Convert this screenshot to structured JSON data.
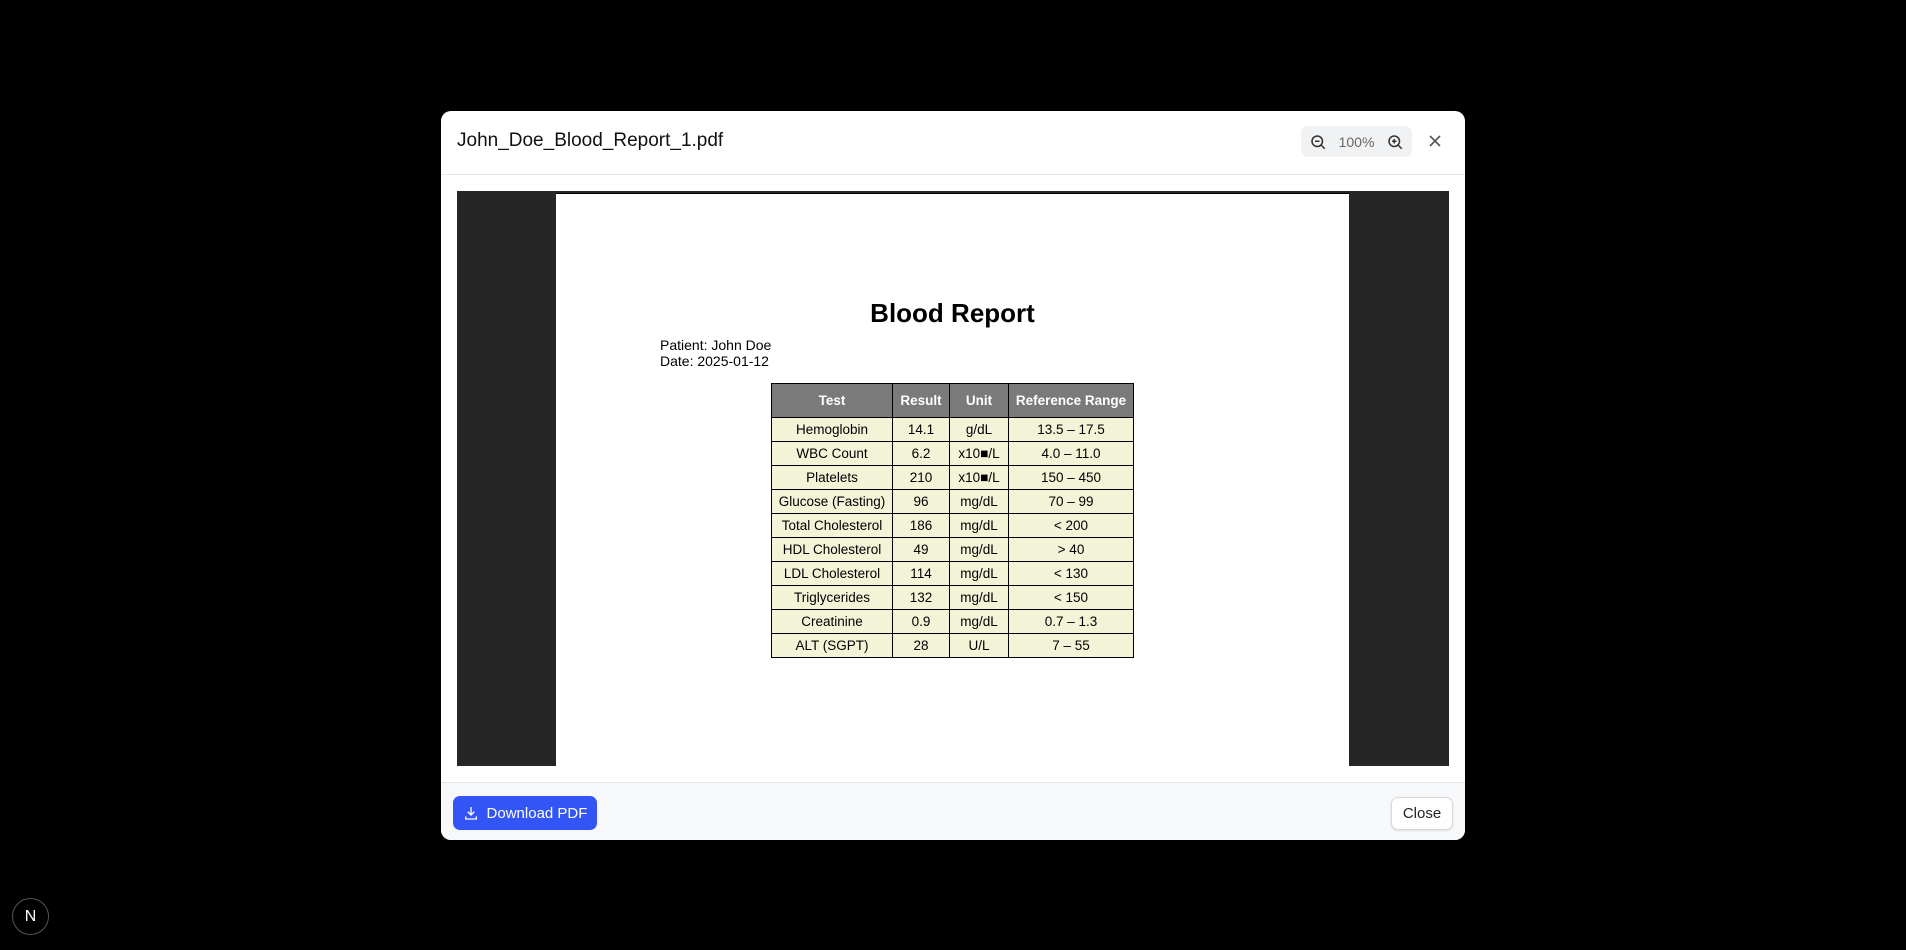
{
  "modal": {
    "title": "John_Doe_Blood_Report_1.pdf",
    "zoom": "100%"
  },
  "report": {
    "title": "Blood Report",
    "patient": "Patient: John Doe",
    "date": "Date: 2025-01-12",
    "headers": [
      "Test",
      "Result",
      "Unit",
      "Reference Range"
    ],
    "rows": [
      [
        "Hemoglobin",
        "14.1",
        "g/dL",
        "13.5 – 17.5"
      ],
      [
        "WBC Count",
        "6.2",
        "x10■/L",
        "4.0 – 11.0"
      ],
      [
        "Platelets",
        "210",
        "x10■/L",
        "150 – 450"
      ],
      [
        "Glucose (Fasting)",
        "96",
        "mg/dL",
        "70 – 99"
      ],
      [
        "Total Cholesterol",
        "186",
        "mg/dL",
        "< 200"
      ],
      [
        "HDL Cholesterol",
        "49",
        "mg/dL",
        "> 40"
      ],
      [
        "LDL Cholesterol",
        "114",
        "mg/dL",
        "< 130"
      ],
      [
        "Triglycerides",
        "132",
        "mg/dL",
        "< 150"
      ],
      [
        "Creatinine",
        "0.9",
        "mg/dL",
        "0.7 – 1.3"
      ],
      [
        "ALT (SGPT)",
        "28",
        "U/L",
        "7 – 55"
      ]
    ]
  },
  "footer": {
    "download_label": "Download PDF",
    "close_label": "Close"
  },
  "badge": {
    "letter": "N"
  },
  "colors": {
    "primary": "#3355f5",
    "viewer_bg": "#262626",
    "table_header": "#7a7a7a",
    "table_cell": "#f3f3d8"
  }
}
